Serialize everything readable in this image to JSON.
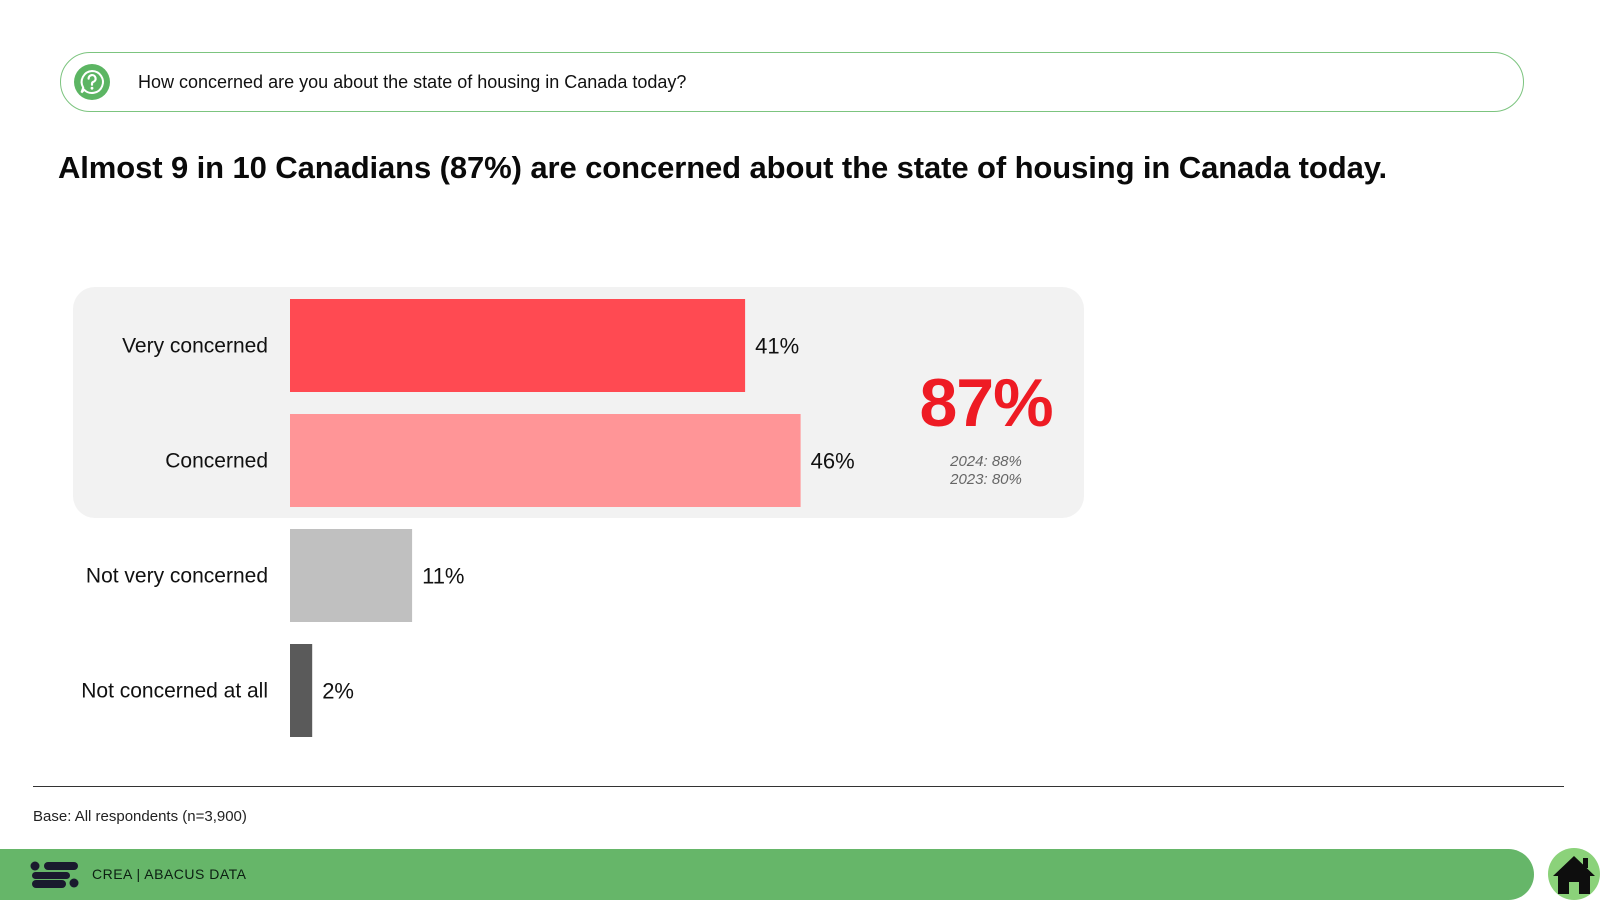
{
  "question": {
    "text": "How concerned are you about the state of housing in Canada today?",
    "icon": "question-bubble-icon"
  },
  "headline": "Almost 9 in 10 Canadians (87%) are concerned about the state of housing in Canada today.",
  "chart_data": {
    "type": "bar",
    "orientation": "horizontal",
    "categories": [
      "Very concerned",
      "Concerned",
      "Not very concerned",
      "Not concerned at all"
    ],
    "values": [
      41,
      46,
      11,
      2
    ],
    "value_labels": [
      "41%",
      "46%",
      "11%",
      "2%"
    ],
    "colors": [
      "#ff4a52",
      "#ff9597",
      "#c0c0c0",
      "#5a5a5a"
    ],
    "unit": "%",
    "xlim": [
      0,
      100
    ],
    "grid": false,
    "highlight": {
      "categories": [
        "Very concerned",
        "Concerned"
      ],
      "net_label": "87%",
      "net_value": 87,
      "net_color": "#ee1b24",
      "prior_years": [
        "2024: 88%",
        "2023: 80%"
      ]
    }
  },
  "base_note": "Base: All respondents (n=3,900)",
  "footer": {
    "brand": "CREA  |  ABACUS DATA",
    "bar_color": "#66b669",
    "home_icon": "home-icon"
  }
}
